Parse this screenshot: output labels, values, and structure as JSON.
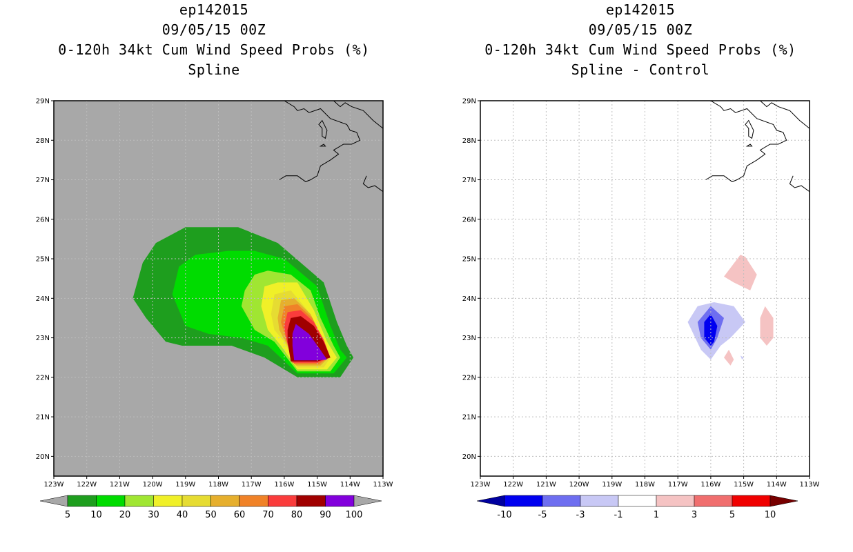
{
  "left_panel": {
    "title_line1": "ep142015",
    "title_line2": "09/05/15 00Z",
    "title_line3": "0-120h 34kt Cum Wind Speed Probs (%)",
    "title_line4": "Spline"
  },
  "right_panel": {
    "title_line1": "ep142015",
    "title_line2": "09/05/15 00Z",
    "title_line3": "0-120h 34kt Cum Wind Speed Probs (%)",
    "title_line4": "Spline - Control"
  },
  "chart_data": [
    {
      "type": "heatmap",
      "title": "0-120h 34kt Cum Wind Speed Probs (%)",
      "subtitle": "Spline",
      "x_range": [
        -123,
        -113
      ],
      "y_range": [
        19.5,
        29
      ],
      "x_tick_labels": [
        "123W",
        "122W",
        "121W",
        "120W",
        "119W",
        "118W",
        "117W",
        "116W",
        "115W",
        "114W",
        "113W"
      ],
      "y_tick_labels": [
        "20N",
        "21N",
        "22N",
        "23N",
        "24N",
        "25N",
        "26N",
        "27N",
        "28N",
        "29N"
      ],
      "background_color": "#a8a8a8",
      "legend": {
        "labels": [
          "5",
          "10",
          "20",
          "30",
          "40",
          "50",
          "60",
          "70",
          "80",
          "90",
          "100"
        ],
        "colors": [
          "#1e9e1e",
          "#00dc00",
          "#a0e632",
          "#f0f028",
          "#e6dc32",
          "#e6af2d",
          "#f08228",
          "#fa3c3c",
          "#a00000",
          "#8200dc"
        ]
      },
      "contours": [
        {
          "level": 5,
          "color": "#1e9e1e",
          "points": [
            [
              -120.6,
              24.0
            ],
            [
              -120.3,
              24.9
            ],
            [
              -119.9,
              25.4
            ],
            [
              -119.0,
              25.8
            ],
            [
              -117.4,
              25.8
            ],
            [
              -116.2,
              25.4
            ],
            [
              -115.5,
              24.9
            ],
            [
              -114.8,
              24.4
            ],
            [
              -114.4,
              23.4
            ],
            [
              -114.1,
              22.8
            ],
            [
              -113.9,
              22.5
            ],
            [
              -114.3,
              22.0
            ],
            [
              -115.6,
              22.0
            ],
            [
              -116.6,
              22.5
            ],
            [
              -117.6,
              22.8
            ],
            [
              -119.1,
              22.8
            ],
            [
              -119.6,
              22.9
            ],
            [
              -120.2,
              23.5
            ]
          ]
        },
        {
          "level": 10,
          "color": "#00dc00",
          "points": [
            [
              -119.4,
              24.1
            ],
            [
              -119.2,
              24.8
            ],
            [
              -118.7,
              25.1
            ],
            [
              -117.7,
              25.2
            ],
            [
              -116.9,
              25.2
            ],
            [
              -116.0,
              25.0
            ],
            [
              -115.0,
              24.3
            ],
            [
              -114.6,
              23.3
            ],
            [
              -114.3,
              22.7
            ],
            [
              -114.1,
              22.5
            ],
            [
              -114.5,
              22.1
            ],
            [
              -115.6,
              22.1
            ],
            [
              -116.5,
              22.8
            ],
            [
              -117.3,
              23.0
            ],
            [
              -118.3,
              23.1
            ],
            [
              -119.0,
              23.3
            ]
          ]
        },
        {
          "level": 20,
          "color": "#a0e632",
          "points": [
            [
              -117.2,
              24.2
            ],
            [
              -116.9,
              24.6
            ],
            [
              -116.5,
              24.7
            ],
            [
              -115.8,
              24.6
            ],
            [
              -115.2,
              24.2
            ],
            [
              -114.9,
              23.5
            ],
            [
              -114.5,
              22.8
            ],
            [
              -114.3,
              22.5
            ],
            [
              -114.6,
              22.15
            ],
            [
              -115.6,
              22.15
            ],
            [
              -116.3,
              22.9
            ],
            [
              -116.9,
              23.2
            ],
            [
              -117.3,
              23.8
            ]
          ]
        },
        {
          "level": 30,
          "color": "#f0f028",
          "points": [
            [
              -116.7,
              23.8
            ],
            [
              -116.6,
              24.3
            ],
            [
              -116.2,
              24.4
            ],
            [
              -115.6,
              24.4
            ],
            [
              -115.1,
              23.7
            ],
            [
              -114.7,
              22.9
            ],
            [
              -114.4,
              22.5
            ],
            [
              -114.7,
              22.2
            ],
            [
              -115.6,
              22.2
            ],
            [
              -116.1,
              22.8
            ],
            [
              -116.5,
              23.2
            ]
          ]
        },
        {
          "level": 40,
          "color": "#e6dc32",
          "points": [
            [
              -116.4,
              23.6
            ],
            [
              -116.3,
              24.1
            ],
            [
              -115.8,
              24.2
            ],
            [
              -115.3,
              23.7
            ],
            [
              -114.9,
              23.0
            ],
            [
              -114.6,
              22.5
            ],
            [
              -114.8,
              22.25
            ],
            [
              -115.6,
              22.25
            ],
            [
              -116.0,
              22.9
            ],
            [
              -116.3,
              23.2
            ]
          ]
        },
        {
          "level": 50,
          "color": "#e6af2d",
          "points": [
            [
              -116.2,
              23.5
            ],
            [
              -116.1,
              23.95
            ],
            [
              -115.7,
              24.0
            ],
            [
              -115.2,
              23.6
            ],
            [
              -114.85,
              23.0
            ],
            [
              -114.65,
              22.5
            ],
            [
              -114.9,
              22.3
            ],
            [
              -115.65,
              22.3
            ],
            [
              -115.9,
              22.8
            ],
            [
              -116.15,
              23.2
            ]
          ]
        },
        {
          "level": 60,
          "color": "#f08228",
          "points": [
            [
              -116.1,
              23.4
            ],
            [
              -116.0,
              23.8
            ],
            [
              -115.6,
              23.85
            ],
            [
              -115.15,
              23.5
            ],
            [
              -114.85,
              23.0
            ],
            [
              -114.65,
              22.5
            ],
            [
              -114.95,
              22.33
            ],
            [
              -115.7,
              22.33
            ],
            [
              -115.95,
              23.0
            ]
          ]
        },
        {
          "level": 70,
          "color": "#fa3c3c",
          "points": [
            [
              -116.0,
              23.3
            ],
            [
              -115.9,
              23.65
            ],
            [
              -115.5,
              23.7
            ],
            [
              -115.1,
              23.4
            ],
            [
              -114.8,
              22.95
            ],
            [
              -114.6,
              22.5
            ],
            [
              -115.0,
              22.37
            ],
            [
              -115.75,
              22.37
            ],
            [
              -115.95,
              23.0
            ]
          ]
        },
        {
          "level": 80,
          "color": "#a00000",
          "points": [
            [
              -115.9,
              23.2
            ],
            [
              -115.8,
              23.5
            ],
            [
              -115.5,
              23.55
            ],
            [
              -115.1,
              23.3
            ],
            [
              -114.8,
              22.9
            ],
            [
              -114.6,
              22.5
            ],
            [
              -115.0,
              22.4
            ],
            [
              -115.8,
              22.4
            ],
            [
              -115.9,
              22.9
            ]
          ]
        },
        {
          "level": 90,
          "color": "#8200dc",
          "points": [
            [
              -115.75,
              23.1
            ],
            [
              -115.65,
              23.35
            ],
            [
              -115.25,
              23.1
            ],
            [
              -114.95,
              22.75
            ],
            [
              -114.7,
              22.45
            ],
            [
              -115.05,
              22.43
            ],
            [
              -115.7,
              22.43
            ],
            [
              -115.75,
              22.8
            ]
          ]
        }
      ]
    },
    {
      "type": "heatmap",
      "title": "0-120h 34kt Cum Wind Speed Probs (%)",
      "subtitle": "Spline - Control",
      "x_range": [
        -123,
        -113
      ],
      "y_range": [
        19.5,
        29
      ],
      "x_tick_labels": [
        "123W",
        "122W",
        "121W",
        "120W",
        "119W",
        "118W",
        "117W",
        "116W",
        "115W",
        "114W",
        "113W"
      ],
      "y_tick_labels": [
        "20N",
        "21N",
        "22N",
        "23N",
        "24N",
        "25N",
        "26N",
        "27N",
        "28N",
        "29N"
      ],
      "background_color": "#ffffff",
      "grid": true,
      "legend": {
        "labels": [
          "-10",
          "-5",
          "-3",
          "-1",
          "1",
          "3",
          "5",
          "10"
        ],
        "colors": [
          "#0000a0",
          "#0000f0",
          "#6e6ef0",
          "#c8c8f5",
          "#ffffff",
          "#f5c3c3",
          "#f06e6e",
          "#f00000",
          "#780000"
        ]
      },
      "contours": [
        {
          "level": 1,
          "color": "#f5c3c3",
          "points": [
            [
              -115.6,
              24.55
            ],
            [
              -115.1,
              25.1
            ],
            [
              -114.95,
              25.05
            ],
            [
              -114.6,
              24.6
            ],
            [
              -114.8,
              24.2
            ],
            [
              -115.3,
              24.4
            ]
          ]
        },
        {
          "level": 1,
          "color": "#f5c3c3",
          "points": [
            [
              -114.35,
              23.8
            ],
            [
              -114.1,
              23.5
            ],
            [
              -114.1,
              23.0
            ],
            [
              -114.3,
              22.8
            ],
            [
              -114.5,
              23.0
            ],
            [
              -114.5,
              23.5
            ]
          ]
        },
        {
          "level": 1,
          "color": "#f5c3c3",
          "points": [
            [
              -115.45,
              22.7
            ],
            [
              -115.3,
              22.45
            ],
            [
              -115.4,
              22.3
            ],
            [
              -115.6,
              22.5
            ]
          ]
        },
        {
          "level": -1,
          "color": "#c8c8f5",
          "points": [
            [
              -115.9,
              23.9
            ],
            [
              -115.3,
              23.8
            ],
            [
              -114.95,
              23.4
            ],
            [
              -115.4,
              23.0
            ],
            [
              -115.7,
              22.8
            ],
            [
              -116.0,
              22.45
            ],
            [
              -116.3,
              22.7
            ],
            [
              -116.7,
              23.4
            ],
            [
              -116.4,
              23.8
            ]
          ]
        },
        {
          "level": -1,
          "color": "#c8c8f5",
          "points": [
            [
              -115.1,
              22.55
            ],
            [
              -115.0,
              22.5
            ],
            [
              -115.05,
              22.45
            ]
          ]
        },
        {
          "level": -3,
          "color": "#6e6ef0",
          "points": [
            [
              -116.0,
              23.8
            ],
            [
              -115.6,
              23.5
            ],
            [
              -115.8,
              23.0
            ],
            [
              -116.0,
              22.7
            ],
            [
              -116.3,
              23.0
            ],
            [
              -116.4,
              23.4
            ]
          ]
        },
        {
          "level": -5,
          "color": "#0000f0",
          "points": [
            [
              -116.0,
              23.6
            ],
            [
              -115.8,
              23.3
            ],
            [
              -115.9,
              22.9
            ],
            [
              -116.0,
              22.8
            ],
            [
              -116.2,
              23.0
            ],
            [
              -116.2,
              23.4
            ]
          ]
        }
      ]
    }
  ]
}
